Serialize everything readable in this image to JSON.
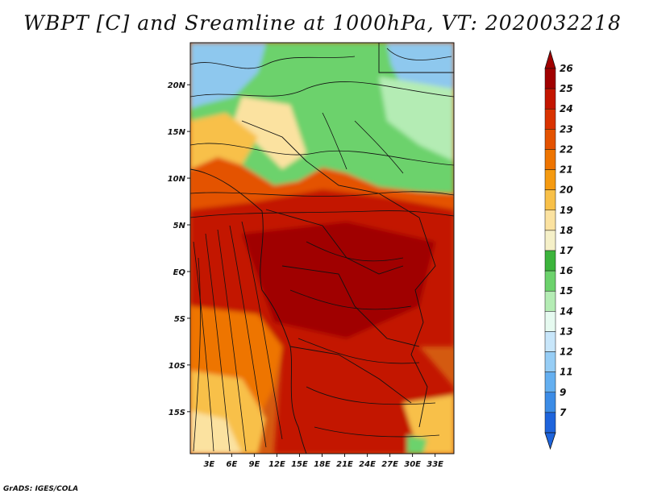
{
  "title": "WBPT [C] and Sreamline at 1000hPa, VT: 2020032218",
  "credit": "GrADS: IGES/COLA",
  "map": {
    "lat_labels": [
      "20N",
      "15N",
      "10N",
      "5N",
      "EQ",
      "5S",
      "10S",
      "15S"
    ],
    "lat_values": [
      20,
      15,
      10,
      5,
      0,
      -5,
      -10,
      -15
    ],
    "lon_labels": [
      "3E",
      "6E",
      "9E",
      "12E",
      "15E",
      "18E",
      "21E",
      "24E",
      "27E",
      "30E",
      "33E"
    ],
    "lon_values": [
      3,
      6,
      9,
      12,
      15,
      18,
      21,
      24,
      27,
      30,
      33
    ],
    "extent": {
      "lon_min": 0.5,
      "lon_max": 35.5,
      "lat_min": -19.5,
      "lat_max": 24.5
    }
  },
  "colorbar": {
    "labels": [
      "26",
      "25",
      "24",
      "23",
      "22",
      "21",
      "20",
      "19",
      "18",
      "17",
      "16",
      "15",
      "14",
      "13",
      "12",
      "11",
      "9",
      "7"
    ],
    "colors": [
      "#a00000",
      "#c31500",
      "#d93200",
      "#e45200",
      "#ee7400",
      "#f59a10",
      "#f8c048",
      "#fbe2a0",
      "#f5f0c8",
      "#3cb43c",
      "#6cd26c",
      "#b4ecb4",
      "#e6faf0",
      "#c8e6fa",
      "#96cdf5",
      "#64aff0",
      "#3c8ce6",
      "#1e64dc"
    ]
  },
  "chart_data": {
    "type": "heatmap",
    "title": "WBPT [C] and Sreamline at 1000hPa, VT: 2020032218",
    "variable": "WBPT [C]",
    "overlay": "streamlines at 1000hPa",
    "valid_time": "2020032218",
    "x_ticks": [
      "3E",
      "6E",
      "9E",
      "12E",
      "15E",
      "18E",
      "21E",
      "24E",
      "27E",
      "30E",
      "33E"
    ],
    "y_ticks": [
      "20N",
      "15N",
      "10N",
      "5N",
      "EQ",
      "5S",
      "10S",
      "15S"
    ],
    "color_levels": [
      7,
      9,
      11,
      12,
      13,
      14,
      15,
      16,
      17,
      18,
      19,
      20,
      21,
      22,
      23,
      24,
      25,
      26
    ],
    "regions": [
      {
        "area": "north-east (upper right)",
        "wbpt": 13
      },
      {
        "area": "north-west (upper left)",
        "wbpt": 14
      },
      {
        "area": "sahel belt (upper center)",
        "wbpt": 17
      },
      {
        "area": "western upper",
        "wbpt": 20
      },
      {
        "area": "equatorial core",
        "wbpt": 25
      },
      {
        "area": "southern interior",
        "wbpt": 24
      },
      {
        "area": "south-west coastal",
        "wbpt": 19
      }
    ]
  }
}
